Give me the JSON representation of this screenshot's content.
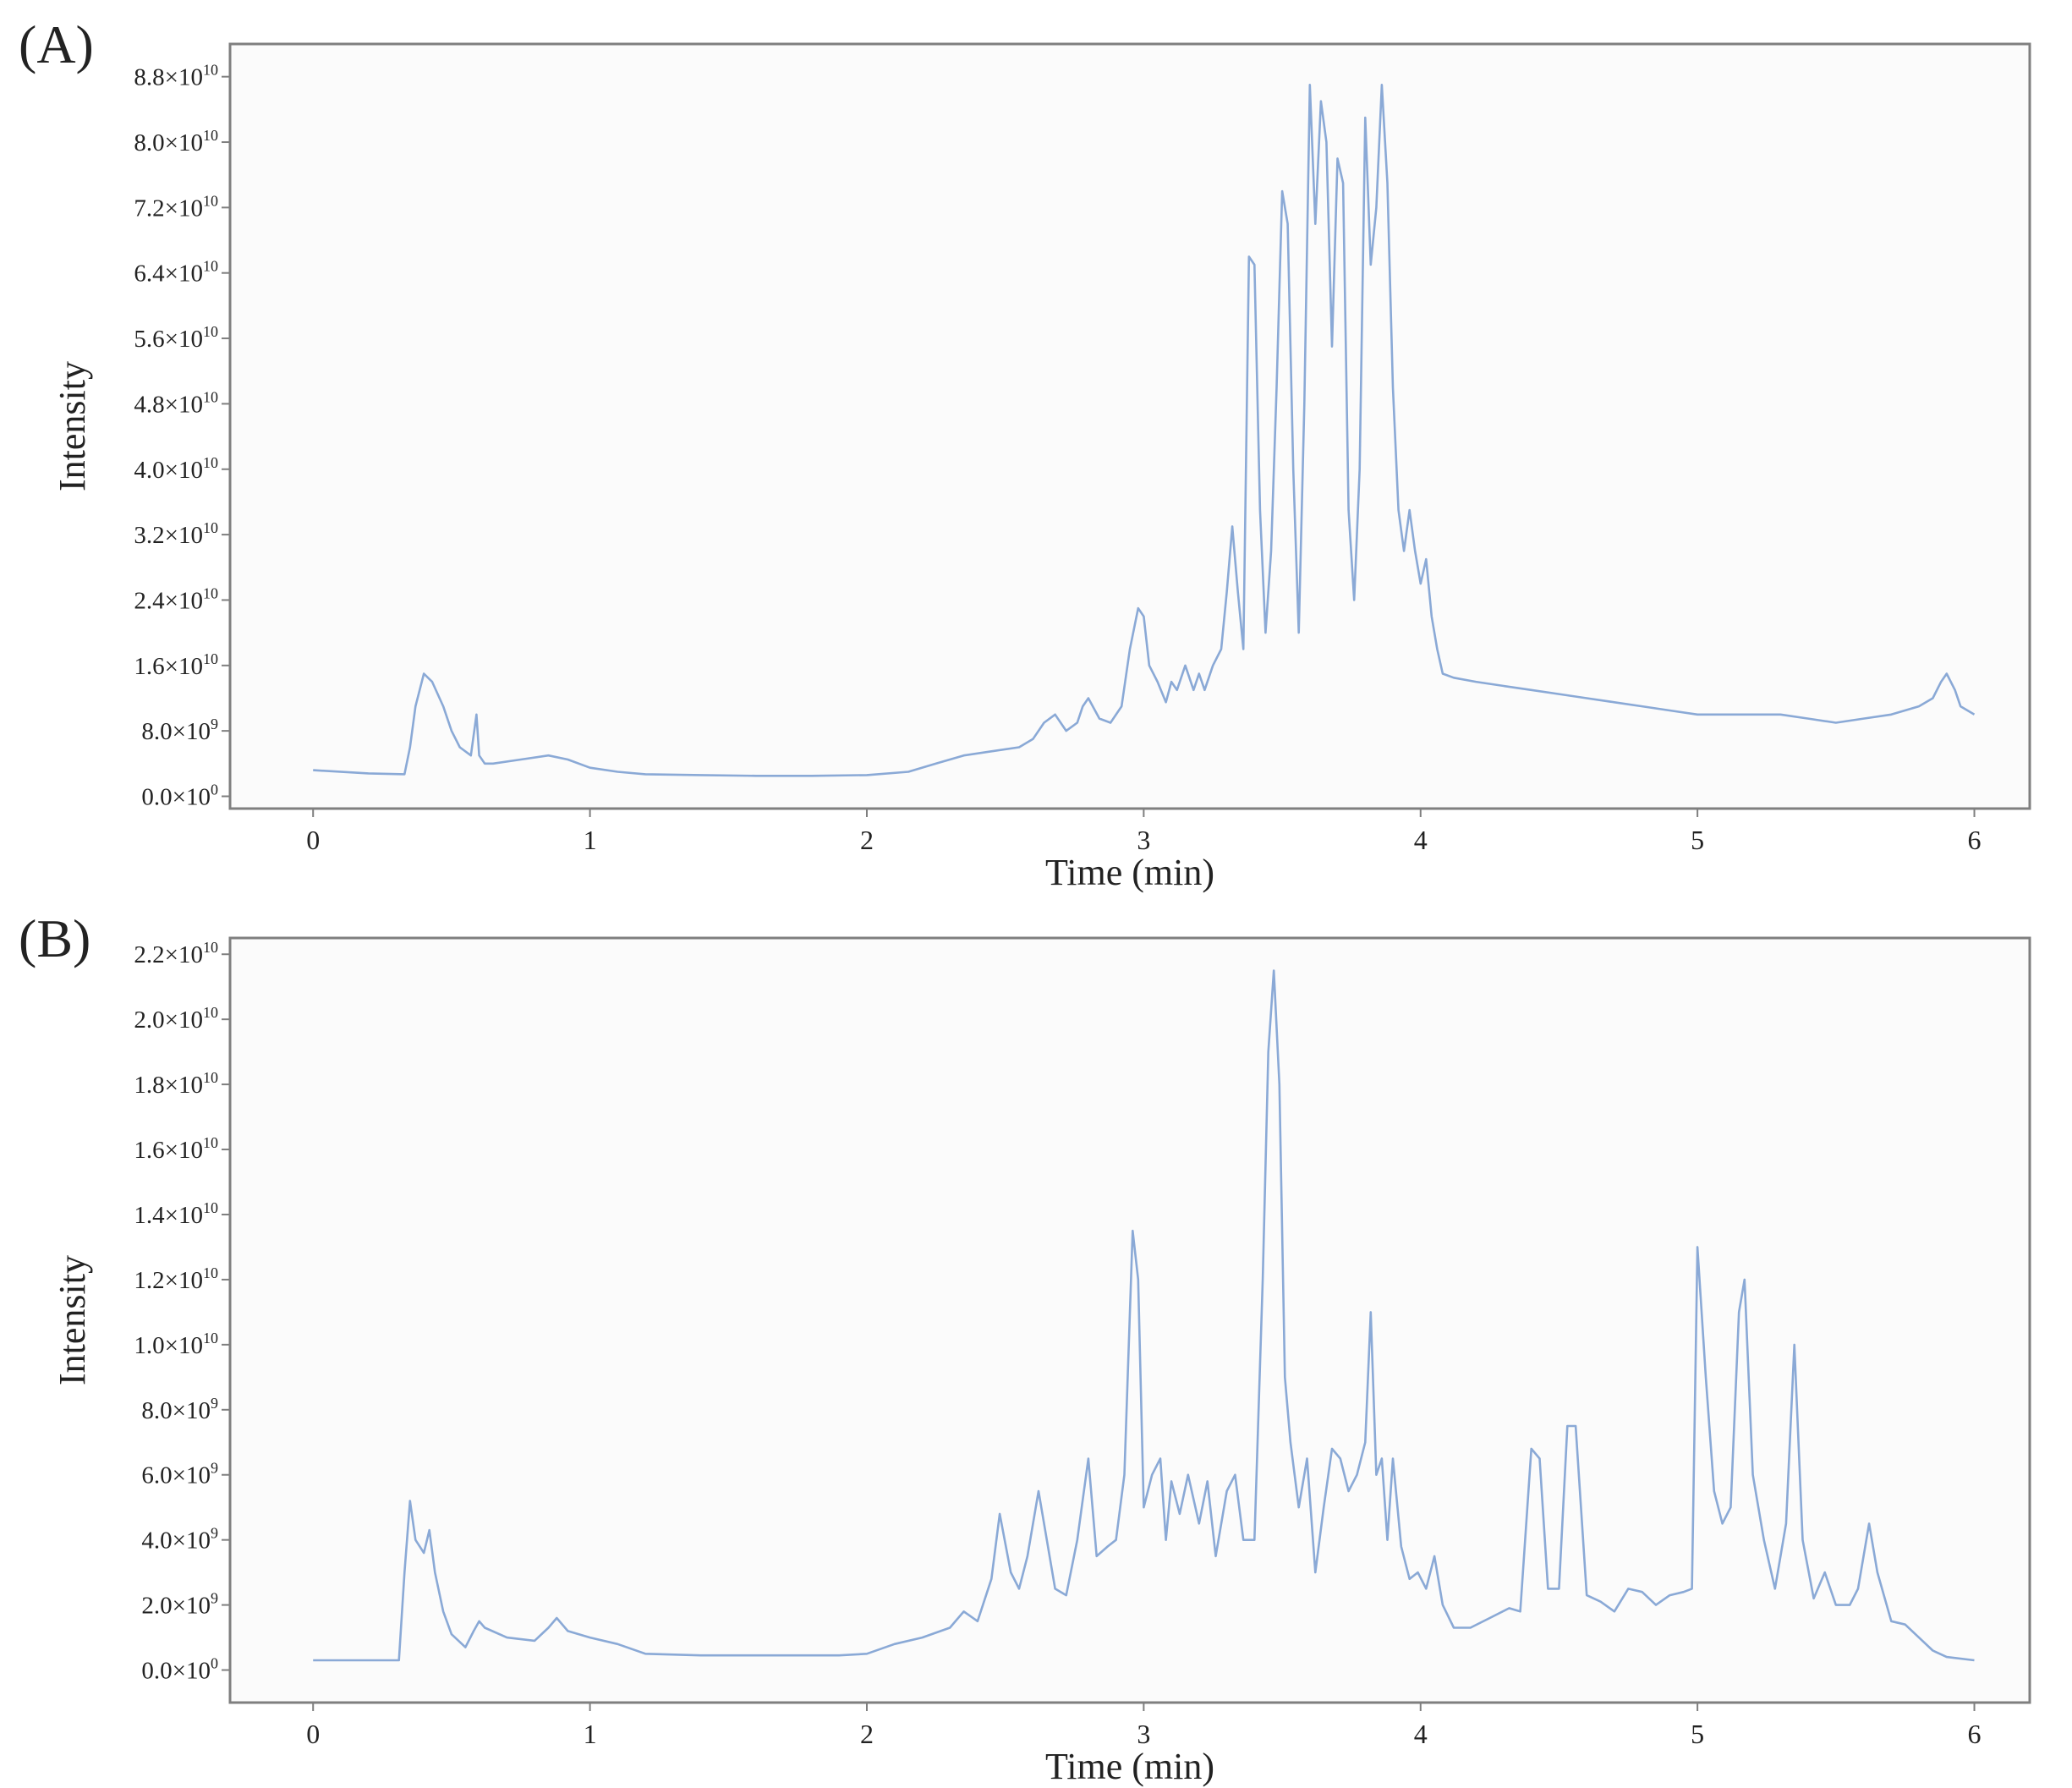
{
  "colors": {
    "line": "#8aa9d6",
    "frame": "#7f7f7f",
    "plot_bg": "#fbfbfb",
    "text": "#222222"
  },
  "chart_data": [
    {
      "type": "line",
      "panel_label": "(A)",
      "xlabel": "Time (min)",
      "ylabel": "Intensity",
      "xlim": [
        -0.3,
        6.2
      ],
      "ylim": [
        -1500000000.0,
        92000000000.0
      ],
      "xticks": [
        0,
        1,
        2,
        3,
        4,
        5,
        6
      ],
      "xtick_labels": [
        "0",
        "1",
        "2",
        "3",
        "4",
        "5",
        "6"
      ],
      "yticks": [
        0,
        8000000000.0,
        16000000000.0,
        24000000000.0,
        32000000000.0,
        40000000000.0,
        48000000000.0,
        56000000000.0,
        64000000000.0,
        72000000000.0,
        80000000000.0,
        88000000000.0
      ],
      "ytick_labels": [
        {
          "mantissa": "0.0",
          "exp": "0"
        },
        {
          "mantissa": "8.0",
          "exp": "9"
        },
        {
          "mantissa": "1.6",
          "exp": "10"
        },
        {
          "mantissa": "2.4",
          "exp": "10"
        },
        {
          "mantissa": "3.2",
          "exp": "10"
        },
        {
          "mantissa": "4.0",
          "exp": "10"
        },
        {
          "mantissa": "4.8",
          "exp": "10"
        },
        {
          "mantissa": "5.6",
          "exp": "10"
        },
        {
          "mantissa": "6.4",
          "exp": "10"
        },
        {
          "mantissa": "7.2",
          "exp": "10"
        },
        {
          "mantissa": "8.0",
          "exp": "10"
        },
        {
          "mantissa": "8.8",
          "exp": "10"
        }
      ],
      "series": [
        {
          "x": [
            0,
            0.2,
            0.33,
            0.35,
            0.37,
            0.4,
            0.43,
            0.47,
            0.5,
            0.53,
            0.57,
            0.59,
            0.6,
            0.62,
            0.65,
            0.75,
            0.85,
            0.92,
            1.0,
            1.1,
            1.2,
            1.4,
            1.6,
            1.8,
            2.0,
            2.15,
            2.25,
            2.35,
            2.45,
            2.55,
            2.6,
            2.64,
            2.68,
            2.72,
            2.76,
            2.78,
            2.8,
            2.84,
            2.88,
            2.92,
            2.95,
            2.98,
            3.0,
            3.02,
            3.05,
            3.08,
            3.1,
            3.12,
            3.15,
            3.18,
            3.2,
            3.22,
            3.25,
            3.28,
            3.3,
            3.32,
            3.34,
            3.36,
            3.38,
            3.4,
            3.42,
            3.44,
            3.46,
            3.48,
            3.5,
            3.52,
            3.54,
            3.56,
            3.58,
            3.6,
            3.62,
            3.64,
            3.66,
            3.68,
            3.7,
            3.72,
            3.74,
            3.76,
            3.78,
            3.8,
            3.82,
            3.84,
            3.86,
            3.88,
            3.9,
            3.92,
            3.94,
            3.96,
            3.98,
            4.0,
            4.02,
            4.04,
            4.06,
            4.08,
            4.12,
            4.2,
            4.3,
            4.4,
            4.5,
            4.6,
            4.7,
            4.8,
            4.9,
            5.0,
            5.1,
            5.2,
            5.3,
            5.4,
            5.5,
            5.6,
            5.7,
            5.8,
            5.85,
            5.88,
            5.9,
            5.93,
            5.95,
            6.0
          ],
          "y": [
            3200000000.0,
            2800000000.0,
            2700000000.0,
            6000000000.0,
            11000000000.0,
            15000000000.0,
            14000000000.0,
            11000000000.0,
            8000000000.0,
            6000000000.0,
            5000000000.0,
            10000000000.0,
            5000000000.0,
            4000000000.0,
            4000000000.0,
            4500000000.0,
            5000000000.0,
            4500000000.0,
            3500000000.0,
            3000000000.0,
            2700000000.0,
            2600000000.0,
            2500000000.0,
            2500000000.0,
            2600000000.0,
            3000000000.0,
            4000000000.0,
            5000000000.0,
            5500000000.0,
            6000000000.0,
            7000000000.0,
            9000000000.0,
            10000000000.0,
            8000000000.0,
            9000000000.0,
            11000000000.0,
            12000000000.0,
            9500000000.0,
            9000000000.0,
            11000000000.0,
            18000000000.0,
            23000000000.0,
            22000000000.0,
            16000000000.0,
            14000000000.0,
            11500000000.0,
            14000000000.0,
            13000000000.0,
            16000000000.0,
            13000000000.0,
            15000000000.0,
            13000000000.0,
            16000000000.0,
            18000000000.0,
            25000000000.0,
            33000000000.0,
            25000000000.0,
            18000000000.0,
            66000000000.0,
            65000000000.0,
            35000000000.0,
            20000000000.0,
            30000000000.0,
            50000000000.0,
            74000000000.0,
            70000000000.0,
            40000000000.0,
            20000000000.0,
            48000000000.0,
            87000000000.0,
            70000000000.0,
            85000000000.0,
            80000000000.0,
            55000000000.0,
            78000000000.0,
            75000000000.0,
            35000000000.0,
            24000000000.0,
            40000000000.0,
            83000000000.0,
            65000000000.0,
            72000000000.0,
            87000000000.0,
            75000000000.0,
            50000000000.0,
            35000000000.0,
            30000000000.0,
            35000000000.0,
            30000000000.0,
            26000000000.0,
            29000000000.0,
            22000000000.0,
            18000000000.0,
            15000000000.0,
            14500000000.0,
            14000000000.0,
            13500000000.0,
            13000000000.0,
            12500000000.0,
            12000000000.0,
            11500000000.0,
            11000000000.0,
            10500000000.0,
            10000000000.0,
            10000000000.0,
            10000000000.0,
            10000000000.0,
            9500000000.0,
            9000000000.0,
            9500000000.0,
            10000000000.0,
            11000000000.0,
            12000000000.0,
            14000000000.0,
            15000000000.0,
            13000000000.0,
            11000000000.0,
            10000000000.0
          ]
        }
      ]
    },
    {
      "type": "line",
      "panel_label": "(B)",
      "xlabel": "Time (min)",
      "ylabel": "Intensity",
      "xlim": [
        -0.3,
        6.2
      ],
      "ylim": [
        -1000000000.0,
        22500000000.0
      ],
      "xticks": [
        0,
        1,
        2,
        3,
        4,
        5,
        6
      ],
      "xtick_labels": [
        "0",
        "1",
        "2",
        "3",
        "4",
        "5",
        "6"
      ],
      "yticks": [
        0,
        2000000000.0,
        4000000000.0,
        6000000000.0,
        8000000000.0,
        10000000000.0,
        12000000000.0,
        14000000000.0,
        16000000000.0,
        18000000000.0,
        20000000000.0,
        22000000000.0
      ],
      "ytick_labels": [
        {
          "mantissa": "0.0",
          "exp": "0"
        },
        {
          "mantissa": "2.0",
          "exp": "9"
        },
        {
          "mantissa": "4.0",
          "exp": "9"
        },
        {
          "mantissa": "6.0",
          "exp": "9"
        },
        {
          "mantissa": "8.0",
          "exp": "9"
        },
        {
          "mantissa": "1.0",
          "exp": "10"
        },
        {
          "mantissa": "1.2",
          "exp": "10"
        },
        {
          "mantissa": "1.4",
          "exp": "10"
        },
        {
          "mantissa": "1.6",
          "exp": "10"
        },
        {
          "mantissa": "1.8",
          "exp": "10"
        },
        {
          "mantissa": "2.0",
          "exp": "10"
        },
        {
          "mantissa": "2.2",
          "exp": "10"
        }
      ],
      "series": [
        {
          "x": [
            0,
            0.2,
            0.31,
            0.33,
            0.35,
            0.37,
            0.4,
            0.42,
            0.44,
            0.47,
            0.5,
            0.55,
            0.58,
            0.6,
            0.62,
            0.7,
            0.8,
            0.85,
            0.88,
            0.92,
            1.0,
            1.1,
            1.2,
            1.4,
            1.6,
            1.8,
            1.9,
            2.0,
            2.1,
            2.2,
            2.3,
            2.35,
            2.4,
            2.45,
            2.48,
            2.52,
            2.55,
            2.58,
            2.62,
            2.65,
            2.68,
            2.72,
            2.76,
            2.8,
            2.83,
            2.87,
            2.9,
            2.93,
            2.96,
            2.98,
            3.0,
            3.03,
            3.06,
            3.08,
            3.1,
            3.13,
            3.16,
            3.2,
            3.23,
            3.26,
            3.3,
            3.33,
            3.36,
            3.4,
            3.43,
            3.45,
            3.47,
            3.49,
            3.51,
            3.53,
            3.56,
            3.59,
            3.62,
            3.65,
            3.68,
            3.71,
            3.74,
            3.77,
            3.8,
            3.82,
            3.84,
            3.86,
            3.88,
            3.9,
            3.93,
            3.96,
            3.99,
            4.02,
            4.05,
            4.08,
            4.12,
            4.18,
            4.25,
            4.32,
            4.36,
            4.4,
            4.43,
            4.46,
            4.5,
            4.53,
            4.56,
            4.6,
            4.65,
            4.7,
            4.75,
            4.8,
            4.85,
            4.9,
            4.95,
            4.98,
            5.0,
            5.03,
            5.06,
            5.09,
            5.12,
            5.15,
            5.17,
            5.2,
            5.24,
            5.28,
            5.32,
            5.35,
            5.38,
            5.42,
            5.46,
            5.5,
            5.55,
            5.58,
            5.62,
            5.65,
            5.7,
            5.75,
            5.8,
            5.85,
            5.9,
            6.0
          ],
          "y": [
            300000000.0,
            300000000.0,
            300000000.0,
            3000000000.0,
            5200000000.0,
            4000000000.0,
            3600000000.0,
            4300000000.0,
            3000000000.0,
            1800000000.0,
            1100000000.0,
            700000000.0,
            1200000000.0,
            1500000000.0,
            1300000000.0,
            1000000000.0,
            900000000.0,
            1300000000.0,
            1600000000.0,
            1200000000.0,
            1000000000.0,
            800000000.0,
            500000000.0,
            450000000.0,
            450000000.0,
            450000000.0,
            450000000.0,
            500000000.0,
            800000000.0,
            1000000000.0,
            1300000000.0,
            1800000000.0,
            1500000000.0,
            2800000000.0,
            4800000000.0,
            3000000000.0,
            2500000000.0,
            3500000000.0,
            5500000000.0,
            4000000000.0,
            2500000000.0,
            2300000000.0,
            4000000000.0,
            6500000000.0,
            3500000000.0,
            3800000000.0,
            4000000000.0,
            6000000000.0,
            13500000000.0,
            12000000000.0,
            5000000000.0,
            6000000000.0,
            6500000000.0,
            4000000000.0,
            5800000000.0,
            4800000000.0,
            6000000000.0,
            4500000000.0,
            5800000000.0,
            3500000000.0,
            5500000000.0,
            6000000000.0,
            4000000000.0,
            4000000000.0,
            12000000000.0,
            19000000000.0,
            21500000000.0,
            18000000000.0,
            9000000000.0,
            7000000000.0,
            5000000000.0,
            6500000000.0,
            3000000000.0,
            5000000000.0,
            6800000000.0,
            6500000000.0,
            5500000000.0,
            6000000000.0,
            7000000000.0,
            11000000000.0,
            6000000000.0,
            6500000000.0,
            4000000000.0,
            6500000000.0,
            3800000000.0,
            2800000000.0,
            3000000000.0,
            2500000000.0,
            3500000000.0,
            2000000000.0,
            1300000000.0,
            1300000000.0,
            1600000000.0,
            1900000000.0,
            1800000000.0,
            6800000000.0,
            6500000000.0,
            2500000000.0,
            2500000000.0,
            7500000000.0,
            7500000000.0,
            2300000000.0,
            2100000000.0,
            1800000000.0,
            2500000000.0,
            2400000000.0,
            2000000000.0,
            2300000000.0,
            2400000000.0,
            2500000000.0,
            13000000000.0,
            9000000000.0,
            5500000000.0,
            4500000000.0,
            5000000000.0,
            11000000000.0,
            12000000000.0,
            6000000000.0,
            4000000000.0,
            2500000000.0,
            4500000000.0,
            10000000000.0,
            4000000000.0,
            2200000000.0,
            3000000000.0,
            2000000000.0,
            2000000000.0,
            2500000000.0,
            4500000000.0,
            3000000000.0,
            1500000000.0,
            1400000000.0,
            1000000000.0,
            600000000.0,
            400000000.0,
            300000000.0
          ]
        }
      ]
    }
  ]
}
